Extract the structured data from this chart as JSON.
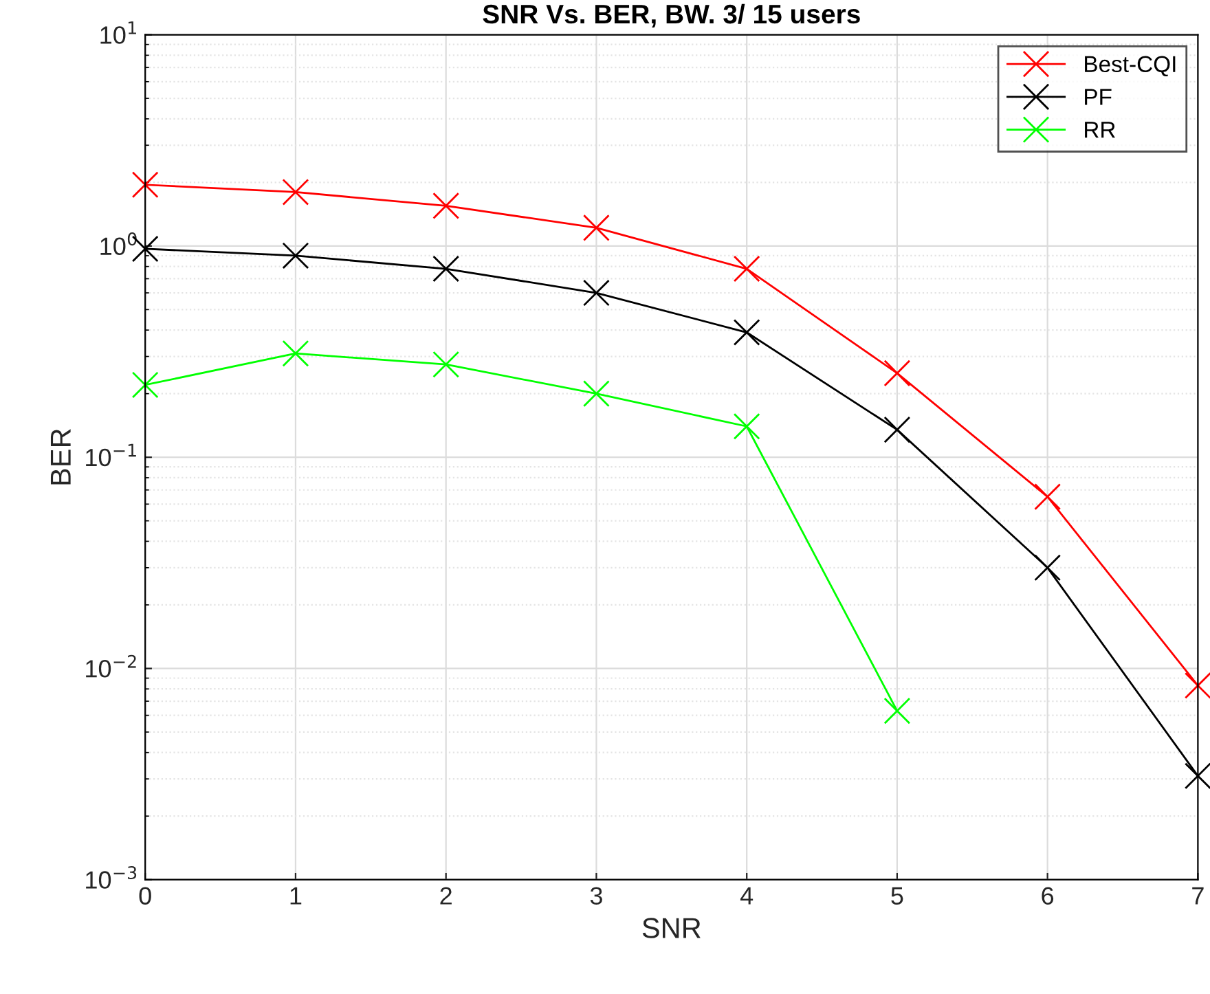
{
  "chart_data": {
    "type": "line",
    "title": "SNR Vs. BER, BW. 3/ 15 users",
    "xlabel": "SNR",
    "ylabel": "BER",
    "x": [
      0,
      1,
      2,
      3,
      4,
      5,
      6,
      7
    ],
    "series": [
      {
        "name": "Best-CQI",
        "color": "#ff0000",
        "values": [
          1.95,
          1.8,
          1.55,
          1.22,
          0.78,
          0.25,
          0.065,
          0.0083
        ]
      },
      {
        "name": "PF",
        "color": "#000000",
        "values": [
          0.97,
          0.9,
          0.78,
          0.6,
          0.39,
          0.135,
          0.03,
          0.0031
        ]
      },
      {
        "name": "RR",
        "color": "#00ff00",
        "values": [
          0.22,
          0.31,
          0.275,
          0.2,
          0.14,
          0.0063,
          null,
          null
        ]
      }
    ],
    "xlim": [
      0,
      7
    ],
    "xticks": [
      0,
      1,
      2,
      3,
      4,
      5,
      6,
      7
    ],
    "ylim": [
      0.001,
      10
    ],
    "yticks": [
      {
        "value": 0.001,
        "label": "10$^{−3}$"
      },
      {
        "value": 0.01,
        "label": "10$^{−2}$"
      },
      {
        "value": 0.1,
        "label": "10$^{−1}$"
      },
      {
        "value": 1,
        "label": "10$^{0}$"
      },
      {
        "value": 10,
        "label": "10$^{1}$"
      }
    ],
    "log": "y",
    "grid": true,
    "legend": "top right",
    "marker": "cross",
    "line_style": "solid"
  }
}
